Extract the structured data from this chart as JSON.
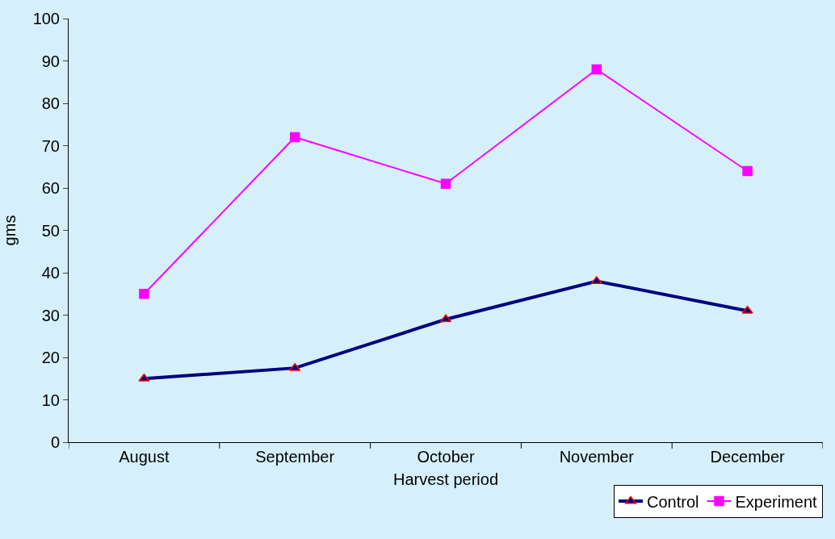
{
  "chart_data": {
    "type": "line",
    "xlabel": "Harvest period",
    "ylabel": "gms",
    "categories": [
      "August",
      "September",
      "October",
      "November",
      "December"
    ],
    "series": [
      {
        "name": "Control",
        "color": "#000080",
        "marker": "triangle",
        "values": [
          15,
          17.5,
          29,
          38,
          31
        ]
      },
      {
        "name": "Experiment",
        "color": "#ff00ff",
        "marker": "square",
        "values": [
          35,
          72,
          61,
          88,
          64
        ]
      }
    ],
    "ylim": [
      0,
      100
    ],
    "yticks": [
      0,
      10,
      20,
      30,
      40,
      50,
      60,
      70,
      80,
      90,
      100
    ],
    "grid": false,
    "legend": "bottom right"
  }
}
